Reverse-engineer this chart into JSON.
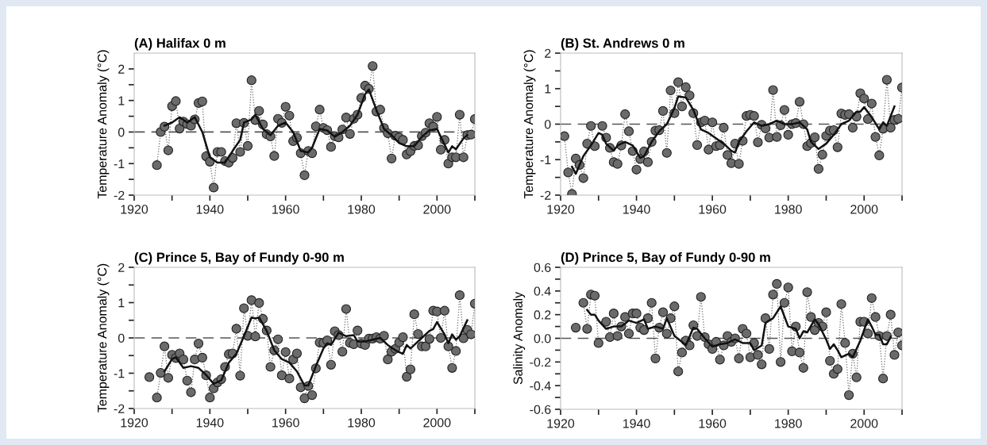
{
  "chart_data": [
    {
      "type": "line",
      "title": "(A) Halifax 0 m",
      "ylabel": "Temperature Anomaly (°C)",
      "series": [
        {
          "type": "line",
          "color": "#6b6b6b",
          "marker": "circle",
          "line_style": "dotted",
          "x": [
            1926,
            1927,
            1928,
            1929,
            1930,
            1931,
            1932,
            1933,
            1934,
            1935,
            1936,
            1937,
            1938,
            1939,
            1940,
            1941,
            1942,
            1943,
            1944,
            1945,
            1946,
            1947,
            1948,
            1949,
            1950,
            1951,
            1952,
            1953,
            1954,
            1955,
            1956,
            1957,
            1958,
            1959,
            1960,
            1961,
            1962,
            1963,
            1964,
            1965,
            1966,
            1967,
            1968,
            1969,
            1970,
            1971,
            1972,
            1973,
            1974,
            1975,
            1976,
            1977,
            1978,
            1979,
            1980,
            1981,
            1982,
            1983,
            1984,
            1985,
            1986,
            1987,
            1988,
            1989,
            1990,
            1991,
            1992,
            1993,
            1994,
            1995,
            1996,
            1997,
            1998,
            1999,
            2000,
            2001,
            2002,
            2003,
            2004,
            2005,
            2006,
            2007,
            2008,
            2009,
            2010
          ],
          "values": [
            -1.05,
            0.0,
            0.17,
            -0.58,
            0.82,
            0.98,
            0.11,
            0.33,
            0.25,
            0.2,
            0.4,
            0.92,
            0.97,
            -0.77,
            -0.94,
            -1.76,
            -0.63,
            -0.63,
            -0.92,
            -0.97,
            -0.82,
            0.28,
            -0.63,
            0.29,
            -0.44,
            1.64,
            0.38,
            0.67,
            0.24,
            -0.07,
            -0.14,
            -0.76,
            0.42,
            0.29,
            0.8,
            0.52,
            -0.29,
            -0.18,
            -0.67,
            -1.37,
            -0.6,
            -0.67,
            0.18,
            0.71,
            0.13,
            0.06,
            -0.47,
            -0.13,
            -0.17,
            0.08,
            0.46,
            -0.06,
            0.42,
            0.55,
            1.08,
            1.47,
            1.37,
            2.09,
            0.65,
            0.71,
            0.13,
            -0.04,
            -0.84,
            -0.12,
            -0.17,
            -0.25,
            -0.71,
            -0.61,
            -0.44,
            -0.42,
            -0.13,
            -0.02,
            0.28,
            0.17,
            0.48,
            -0.56,
            -0.25,
            -1.0,
            -0.8,
            -0.8,
            0.55,
            -0.8,
            -0.1,
            -0.08,
            0.41
          ]
        },
        {
          "type": "line",
          "color": "#111111",
          "line_style": "solid",
          "x": [
            1928,
            1930,
            1932,
            1934,
            1936,
            1938,
            1940,
            1942,
            1944,
            1946,
            1948,
            1949,
            1951,
            1952,
            1954,
            1956,
            1958,
            1960,
            1962,
            1964,
            1966,
            1967,
            1969,
            1971,
            1973,
            1975,
            1977,
            1979,
            1981,
            1982,
            1984,
            1986,
            1988,
            1990,
            1992,
            1994,
            1996,
            1998,
            2000,
            2002,
            2003,
            2004,
            2005,
            2007,
            2008
          ],
          "values": [
            0.2,
            0.3,
            0.47,
            0.3,
            0.47,
            0.0,
            -0.8,
            -0.97,
            -0.97,
            -0.6,
            -0.25,
            0.3,
            0.4,
            0.55,
            0.1,
            -0.1,
            0.2,
            0.3,
            0.0,
            -0.6,
            -0.65,
            -0.5,
            0.1,
            0.05,
            -0.15,
            0.0,
            0.2,
            0.55,
            1.2,
            1.35,
            0.7,
            0.1,
            -0.1,
            -0.35,
            -0.45,
            -0.45,
            -0.15,
            0.05,
            0.1,
            -0.4,
            -0.65,
            -0.45,
            -0.55,
            -0.2,
            -0.1
          ]
        }
      ],
      "xlim": [
        1920,
        2010
      ],
      "xticks": [
        1920,
        {
          "value": 1930,
          "label": null
        },
        1940,
        {
          "value": 1950,
          "label": null
        },
        1960,
        {
          "value": 1970,
          "label": null
        },
        1980,
        {
          "value": 1990,
          "label": null
        },
        2000,
        {
          "value": 2010,
          "label": null
        }
      ],
      "ylim": [
        -2,
        2.5
      ],
      "yticks": [
        -2,
        {
          "value": -1.5,
          "label": null
        },
        -1,
        {
          "value": -0.5,
          "label": null
        },
        0,
        {
          "value": 0.5,
          "label": null
        },
        1,
        {
          "value": 1.5,
          "label": null
        },
        2
      ],
      "ref_lines": [
        {
          "axis": "y",
          "value": 0,
          "color": "#555555",
          "line_style": "dashed"
        }
      ]
    },
    {
      "type": "line",
      "title": "(B) St. Andrews 0 m",
      "ylabel": "Temperature Anomaly (°C)",
      "series": [
        {
          "type": "line",
          "color": "#6b6b6b",
          "marker": "circle",
          "line_style": "dotted",
          "x": [
            1921,
            1922,
            1923,
            1924,
            1925,
            1926,
            1927,
            1928,
            1929,
            1930,
            1931,
            1932,
            1933,
            1934,
            1935,
            1936,
            1937,
            1938,
            1939,
            1940,
            1941,
            1942,
            1943,
            1944,
            1945,
            1946,
            1947,
            1948,
            1949,
            1950,
            1951,
            1952,
            1953,
            1954,
            1955,
            1956,
            1957,
            1958,
            1959,
            1960,
            1961,
            1962,
            1963,
            1964,
            1965,
            1966,
            1967,
            1968,
            1969,
            1970,
            1971,
            1972,
            1973,
            1974,
            1975,
            1976,
            1977,
            1978,
            1979,
            1980,
            1981,
            1982,
            1983,
            1984,
            1985,
            1986,
            1987,
            1988,
            1989,
            1990,
            1991,
            1992,
            1993,
            1994,
            1995,
            1996,
            1997,
            1998,
            1999,
            2000,
            2001,
            2002,
            2003,
            2004,
            2005,
            2006,
            2007,
            2008,
            2009,
            2010
          ],
          "values": [
            -0.34,
            -1.36,
            -1.97,
            -0.97,
            -1.15,
            -1.52,
            -0.55,
            -0.05,
            -0.62,
            null,
            -0.05,
            -0.38,
            -0.67,
            -1.07,
            -1.12,
            -0.6,
            0.28,
            -0.2,
            -0.76,
            -1.28,
            -0.98,
            -0.77,
            -1.07,
            -0.5,
            -0.18,
            -0.17,
            0.37,
            -0.81,
            0.95,
            0.31,
            1.18,
            0.5,
            1.04,
            0.81,
            0.31,
            -0.59,
            0.05,
            0.1,
            -0.72,
            0.05,
            -0.62,
            -0.59,
            -0.1,
            -0.87,
            -1.1,
            -0.55,
            -1.12,
            -0.47,
            0.23,
            0.26,
            0.23,
            -0.51,
            -0.02,
            -0.12,
            -0.38,
            0.96,
            -0.36,
            -0.03,
            0.4,
            -0.3,
            0.0,
            0.03,
            0.63,
            0.0,
            -0.62,
            -0.53,
            -0.37,
            -1.26,
            -0.86,
            -0.33,
            -0.18,
            -0.17,
            -0.65,
            0.3,
            0.26,
            0.28,
            -0.1,
            0.21,
            0.87,
            0.72,
            0.14,
            0.58,
            -0.36,
            -0.88,
            -0.13,
            1.25,
            -0.1,
            0.12,
            0.15,
            1.03
          ]
        },
        {
          "type": "line",
          "color": "#111111",
          "line_style": "solid",
          "x": [
            1923,
            1924,
            1926,
            1928,
            1930,
            1931,
            1932,
            1934,
            1935,
            1937,
            1939,
            1941,
            1942,
            1944,
            1946,
            1948,
            1950,
            1951,
            1953,
            1955,
            1957,
            1959,
            1961,
            1963,
            1965,
            1966,
            1967,
            1969,
            1971,
            1973,
            1975,
            1977,
            1979,
            1981,
            1983,
            1985,
            1986,
            1988,
            1990,
            1992,
            1994,
            1996,
            1998,
            1999,
            2000,
            2002,
            2004,
            2005,
            2006,
            2008
          ],
          "values": [
            -1.2,
            -1.4,
            -0.9,
            -0.6,
            -0.25,
            -0.3,
            -0.55,
            -0.75,
            -0.6,
            -0.5,
            -0.6,
            -0.95,
            -0.9,
            -0.5,
            -0.2,
            0.0,
            0.45,
            0.78,
            0.75,
            0.4,
            -0.15,
            -0.25,
            -0.4,
            -0.55,
            -0.75,
            -0.8,
            -0.5,
            -0.2,
            0.05,
            -0.05,
            0.0,
            0.1,
            0.0,
            0.0,
            0.05,
            -0.15,
            -0.5,
            -0.7,
            -0.55,
            -0.3,
            0.0,
            0.1,
            0.35,
            0.35,
            0.48,
            0.2,
            -0.15,
            0.05,
            -0.05,
            0.5
          ]
        }
      ],
      "xlim": [
        1920,
        2010
      ],
      "xticks": [
        1920,
        {
          "value": 1930,
          "label": null
        },
        1940,
        {
          "value": 1950,
          "label": null
        },
        1960,
        {
          "value": 1970,
          "label": null
        },
        1980,
        {
          "value": 1990,
          "label": null
        },
        2000,
        {
          "value": 2010,
          "label": null
        }
      ],
      "ylim": [
        -2,
        2
      ],
      "yticks": [
        -2,
        {
          "value": -1.5,
          "label": null
        },
        -1,
        {
          "value": -0.5,
          "label": null
        },
        0,
        {
          "value": 0.5,
          "label": null
        },
        1,
        {
          "value": 1.5,
          "label": null
        },
        2
      ],
      "ref_lines": [
        {
          "axis": "y",
          "value": 0,
          "color": "#555555",
          "line_style": "dashed"
        }
      ]
    },
    {
      "type": "line",
      "title": "(C) Prince 5, Bay of Fundy 0-90 m",
      "ylabel": "Temperature Anomaly (°C)",
      "series": [
        {
          "type": "line",
          "color": "#6b6b6b",
          "marker": "circle",
          "line_style": "dotted",
          "x": [
            1924,
            1925,
            1926,
            1927,
            1928,
            1929,
            1930,
            1931,
            1932,
            1933,
            1934,
            1935,
            1936,
            1937,
            1938,
            1939,
            1940,
            1941,
            1942,
            1943,
            1944,
            1945,
            1946,
            1947,
            1948,
            1949,
            1950,
            1951,
            1952,
            1953,
            1954,
            1955,
            1956,
            1957,
            1958,
            1959,
            1960,
            1961,
            1962,
            1963,
            1964,
            1965,
            1966,
            1967,
            1968,
            1969,
            1970,
            1971,
            1972,
            1973,
            1974,
            1975,
            1976,
            1977,
            1978,
            1979,
            1980,
            1981,
            1982,
            1983,
            1984,
            1985,
            1986,
            1987,
            1988,
            1989,
            1990,
            1991,
            1992,
            1993,
            1994,
            1995,
            1996,
            1997,
            1998,
            1999,
            2000,
            2001,
            2002,
            2003,
            2004,
            2005,
            2006,
            2007,
            2008,
            2009,
            2010
          ],
          "values": [
            -1.11,
            null,
            -1.69,
            -0.99,
            -0.24,
            -1.13,
            -0.48,
            -0.57,
            -0.44,
            -0.61,
            -1.21,
            -1.54,
            -0.61,
            -0.16,
            -0.56,
            -1.06,
            -1.69,
            -1.43,
            -1.26,
            -1.17,
            -0.82,
            -0.46,
            -0.44,
            0.26,
            -1.07,
            0.84,
            0.06,
            1.07,
            0.04,
            0.99,
            0.54,
            0.21,
            -0.82,
            -0.35,
            -0.04,
            -1.06,
            -0.4,
            -1.15,
            -0.61,
            -0.44,
            -1.4,
            -1.71,
            -1.36,
            -1.62,
            -0.86,
            -0.13,
            -0.14,
            -0.07,
            -0.76,
            0.19,
            0.08,
            -0.39,
            0.82,
            -0.14,
            -0.18,
            0.21,
            -0.16,
            -0.2,
            -0.02,
            -0.02,
            0.02,
            -0.02,
            0.06,
            -0.61,
            -0.39,
            -0.31,
            -0.13,
            0.02,
            -1.1,
            -0.89,
            0.67,
            0.11,
            -0.24,
            -0.24,
            -0.03,
            0.77,
            0.75,
            0.0,
            0.77,
            -0.24,
            -0.85,
            -0.37,
            1.21,
            -0.01,
            0.23,
            0.1,
            0.97
          ]
        },
        {
          "type": "line",
          "color": "#111111",
          "line_style": "solid",
          "x": [
            1928,
            1930,
            1931,
            1933,
            1935,
            1937,
            1939,
            1941,
            1943,
            1945,
            1947,
            1949,
            1951,
            1952,
            1953,
            1955,
            1957,
            1959,
            1961,
            1963,
            1965,
            1966,
            1968,
            1970,
            1971,
            1972,
            1974,
            1976,
            1978,
            1979,
            1981,
            1983,
            1985,
            1987,
            1989,
            1991,
            1992,
            1993,
            1994,
            1996,
            1998,
            1999,
            2000,
            2002,
            2003,
            2004,
            2005,
            2006,
            2008
          ],
          "values": [
            -0.95,
            -0.6,
            -0.55,
            -0.85,
            -0.8,
            -0.85,
            -1.05,
            -1.3,
            -1.2,
            -0.7,
            -0.45,
            0.05,
            0.58,
            0.55,
            0.58,
            0.2,
            -0.35,
            -0.6,
            -0.7,
            -0.95,
            -1.35,
            -1.35,
            -0.8,
            -0.3,
            -0.15,
            -0.2,
            0.15,
            0.05,
            0.08,
            -0.1,
            -0.1,
            -0.05,
            0.0,
            -0.2,
            -0.35,
            -0.45,
            -0.2,
            -0.3,
            -0.2,
            0.0,
            0.2,
            0.25,
            0.45,
            0.1,
            -0.15,
            0.1,
            -0.05,
            0.05,
            0.5
          ]
        }
      ],
      "xlim": [
        1920,
        2010
      ],
      "xticks": [
        1920,
        {
          "value": 1930,
          "label": null
        },
        1940,
        {
          "value": 1950,
          "label": null
        },
        1960,
        {
          "value": 1970,
          "label": null
        },
        1980,
        {
          "value": 1990,
          "label": null
        },
        2000,
        {
          "value": 2010,
          "label": null
        }
      ],
      "ylim": [
        -2,
        2
      ],
      "yticks": [
        -2,
        {
          "value": -1.5,
          "label": null
        },
        -1,
        {
          "value": -0.5,
          "label": null
        },
        0,
        {
          "value": 0.5,
          "label": null
        },
        1,
        {
          "value": 1.5,
          "label": null
        },
        2
      ],
      "ref_lines": [
        {
          "axis": "y",
          "value": 0,
          "color": "#555555",
          "line_style": "dashed"
        }
      ]
    },
    {
      "type": "line",
      "title": "(D) Prince 5, Bay of Fundy 0-90 m",
      "ylabel": "Salinity Anomaly",
      "series": [
        {
          "type": "line",
          "color": "#6b6b6b",
          "marker": "circle",
          "line_style": "dotted",
          "x": [
            1924,
            1925,
            1926,
            1927,
            1928,
            1929,
            1930,
            1931,
            1932,
            1933,
            1934,
            1935,
            1936,
            1937,
            1938,
            1939,
            1940,
            1941,
            1942,
            1943,
            1944,
            1945,
            1946,
            1947,
            1948,
            1949,
            1950,
            1951,
            1952,
            1953,
            1954,
            1955,
            1956,
            1957,
            1958,
            1959,
            1960,
            1961,
            1962,
            1963,
            1964,
            1965,
            1966,
            1967,
            1968,
            1969,
            1970,
            1971,
            1972,
            1973,
            1974,
            1975,
            1976,
            1977,
            1978,
            1979,
            1980,
            1981,
            1982,
            1983,
            1984,
            1985,
            1986,
            1987,
            1988,
            1989,
            1990,
            1991,
            1992,
            1993,
            1994,
            1995,
            1996,
            1997,
            1998,
            1999,
            2000,
            2001,
            2002,
            2003,
            2004,
            2005,
            2006,
            2007,
            2008,
            2009,
            2010
          ],
          "values": [
            0.09,
            null,
            0.3,
            0.08,
            0.37,
            0.36,
            -0.04,
            null,
            0.14,
            0.01,
            0.21,
            0.02,
            0.1,
            0.18,
            0.04,
            0.21,
            0.21,
            0.09,
            0.07,
            0.17,
            0.3,
            -0.17,
            0.09,
            0.22,
            0.04,
            0.17,
            0.27,
            -0.28,
            -0.12,
            -0.02,
            -0.06,
            0.11,
            0.02,
            0.35,
            0.01,
            -0.05,
            -0.09,
            -0.03,
            -0.18,
            -0.06,
            0.02,
            -0.03,
            0.0,
            -0.17,
            0.08,
            0.04,
            -0.16,
            -0.04,
            -0.14,
            -0.22,
            0.17,
            -0.09,
            0.37,
            0.46,
            -0.2,
            0.3,
            0.43,
            -0.11,
            0.1,
            -0.12,
            -0.25,
            0.39,
            0.18,
            0.07,
            0.13,
            0.1,
            0.22,
            -0.19,
            -0.3,
            -0.26,
            0.29,
            -0.04,
            -0.48,
            -0.13,
            -0.33,
            0.14,
            0.14,
            0.04,
            0.34,
            0.18,
            0.02,
            -0.34,
            0.02,
            0.2,
            -0.14,
            0.05,
            -0.06
          ]
        },
        {
          "type": "line",
          "color": "#111111",
          "line_style": "solid",
          "x": [
            1927,
            1928,
            1929,
            1930,
            1932,
            1934,
            1936,
            1938,
            1940,
            1942,
            1943,
            1945,
            1947,
            1948,
            1950,
            1952,
            1953,
            1955,
            1956,
            1958,
            1960,
            1962,
            1964,
            1966,
            1968,
            1970,
            1971,
            1973,
            1974,
            1976,
            1978,
            1980,
            1982,
            1983,
            1984,
            1985,
            1987,
            1988,
            1990,
            1991,
            1992,
            1993,
            1994,
            1996,
            1997,
            1999,
            2001,
            2002,
            2003,
            2004,
            2005,
            2006,
            2007
          ],
          "values": [
            0.24,
            0.2,
            0.2,
            0.15,
            0.08,
            0.1,
            0.1,
            0.15,
            0.13,
            0.16,
            0.08,
            0.1,
            0.08,
            0.17,
            0.02,
            -0.03,
            -0.06,
            0.09,
            0.08,
            0.0,
            -0.07,
            -0.05,
            -0.04,
            -0.01,
            -0.04,
            -0.04,
            -0.1,
            -0.06,
            0.13,
            0.17,
            0.27,
            0.1,
            0.08,
            0.0,
            0.06,
            0.05,
            0.16,
            0.12,
            -0.01,
            -0.09,
            -0.05,
            -0.1,
            -0.16,
            -0.13,
            -0.16,
            -0.02,
            0.16,
            0.1,
            0.03,
            0.03,
            -0.05,
            -0.05,
            0.01
          ]
        }
      ],
      "xlim": [
        1920,
        2010
      ],
      "xticks": [
        1920,
        {
          "value": 1930,
          "label": null
        },
        1940,
        {
          "value": 1950,
          "label": null
        },
        1960,
        {
          "value": 1970,
          "label": null
        },
        1980,
        {
          "value": 1990,
          "label": null
        },
        2000,
        {
          "value": 2010,
          "label": null
        }
      ],
      "ylim": [
        -0.6,
        0.6
      ],
      "yticks": [
        {
          "value": -0.6,
          "label": "-0.6"
        },
        {
          "value": -0.5,
          "label": null
        },
        {
          "value": -0.4,
          "label": "-0.4"
        },
        {
          "value": -0.3,
          "label": null
        },
        {
          "value": -0.2,
          "label": "-0.2"
        },
        {
          "value": -0.1,
          "label": null
        },
        {
          "value": 0,
          "label": "0.0"
        },
        {
          "value": 0.1,
          "label": null
        },
        {
          "value": 0.2,
          "label": "0.2"
        },
        {
          "value": 0.3,
          "label": null
        },
        {
          "value": 0.4,
          "label": "0.4"
        },
        {
          "value": 0.5,
          "label": null
        },
        {
          "value": 0.6,
          "label": "0.6"
        }
      ],
      "ref_lines": [
        {
          "axis": "y",
          "value": 0,
          "color": "#555555",
          "line_style": "dashed"
        }
      ]
    }
  ]
}
